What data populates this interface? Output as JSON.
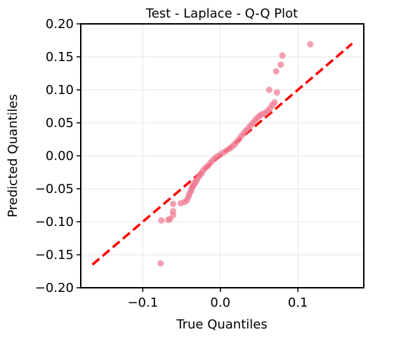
{
  "chart_data": {
    "type": "scatter",
    "title": "Test - Laplace - Q-Q Plot",
    "xlabel": "True Quantiles",
    "ylabel": "Predicted Quantiles",
    "xlim": [
      -0.18,
      0.185
    ],
    "ylim": [
      -0.2,
      0.2
    ],
    "xticks": [
      -0.1,
      0.0,
      0.1
    ],
    "xtick_labels": [
      "−0.1",
      "0.0",
      "0.1"
    ],
    "yticks": [
      -0.2,
      -0.15,
      -0.1,
      -0.05,
      0.0,
      0.05,
      0.1,
      0.15,
      0.2
    ],
    "ytick_labels": [
      "−0.20",
      "−0.15",
      "−0.10",
      "−0.05",
      "0.00",
      "0.05",
      "0.10",
      "0.15",
      "0.20"
    ],
    "grid": true,
    "point_color": "#f07890",
    "reference_line": {
      "x": [
        -0.165,
        0.17
      ],
      "y": [
        -0.165,
        0.17
      ],
      "color": "#ff0000",
      "style": "dashed"
    },
    "points": [
      [
        -0.077,
        -0.163
      ],
      [
        -0.076,
        -0.098
      ],
      [
        -0.067,
        -0.097
      ],
      [
        -0.065,
        -0.096
      ],
      [
        -0.061,
        -0.09
      ],
      [
        -0.061,
        -0.084
      ],
      [
        -0.061,
        -0.073
      ],
      [
        -0.051,
        -0.072
      ],
      [
        -0.046,
        -0.07
      ],
      [
        -0.043,
        -0.067
      ],
      [
        -0.041,
        -0.062
      ],
      [
        -0.04,
        -0.058
      ],
      [
        -0.038,
        -0.054
      ],
      [
        -0.037,
        -0.05
      ],
      [
        -0.036,
        -0.047
      ],
      [
        -0.035,
        -0.045
      ],
      [
        -0.033,
        -0.042
      ],
      [
        -0.032,
        -0.039
      ],
      [
        -0.03,
        -0.036
      ],
      [
        -0.028,
        -0.032
      ],
      [
        -0.026,
        -0.029
      ],
      [
        -0.024,
        -0.026
      ],
      [
        -0.022,
        -0.022
      ],
      [
        -0.019,
        -0.018
      ],
      [
        -0.016,
        -0.015
      ],
      [
        -0.013,
        -0.011
      ],
      [
        -0.01,
        -0.007
      ],
      [
        -0.007,
        -0.004
      ],
      [
        -0.004,
        -0.001
      ],
      [
        0.0,
        0.002
      ],
      [
        0.004,
        0.005
      ],
      [
        0.008,
        0.008
      ],
      [
        0.012,
        0.011
      ],
      [
        0.015,
        0.014
      ],
      [
        0.018,
        0.017
      ],
      [
        0.021,
        0.021
      ],
      [
        0.024,
        0.025
      ],
      [
        0.027,
        0.03
      ],
      [
        0.03,
        0.034
      ],
      [
        0.033,
        0.038
      ],
      [
        0.036,
        0.042
      ],
      [
        0.039,
        0.046
      ],
      [
        0.042,
        0.05
      ],
      [
        0.045,
        0.054
      ],
      [
        0.048,
        0.058
      ],
      [
        0.051,
        0.061
      ],
      [
        0.054,
        0.063
      ],
      [
        0.058,
        0.065
      ],
      [
        0.061,
        0.068
      ],
      [
        0.064,
        0.072
      ],
      [
        0.067,
        0.077
      ],
      [
        0.07,
        0.081
      ],
      [
        0.073,
        0.096
      ],
      [
        0.063,
        0.1
      ],
      [
        0.072,
        0.128
      ],
      [
        0.078,
        0.138
      ],
      [
        0.08,
        0.152
      ],
      [
        0.116,
        0.169
      ]
    ]
  }
}
